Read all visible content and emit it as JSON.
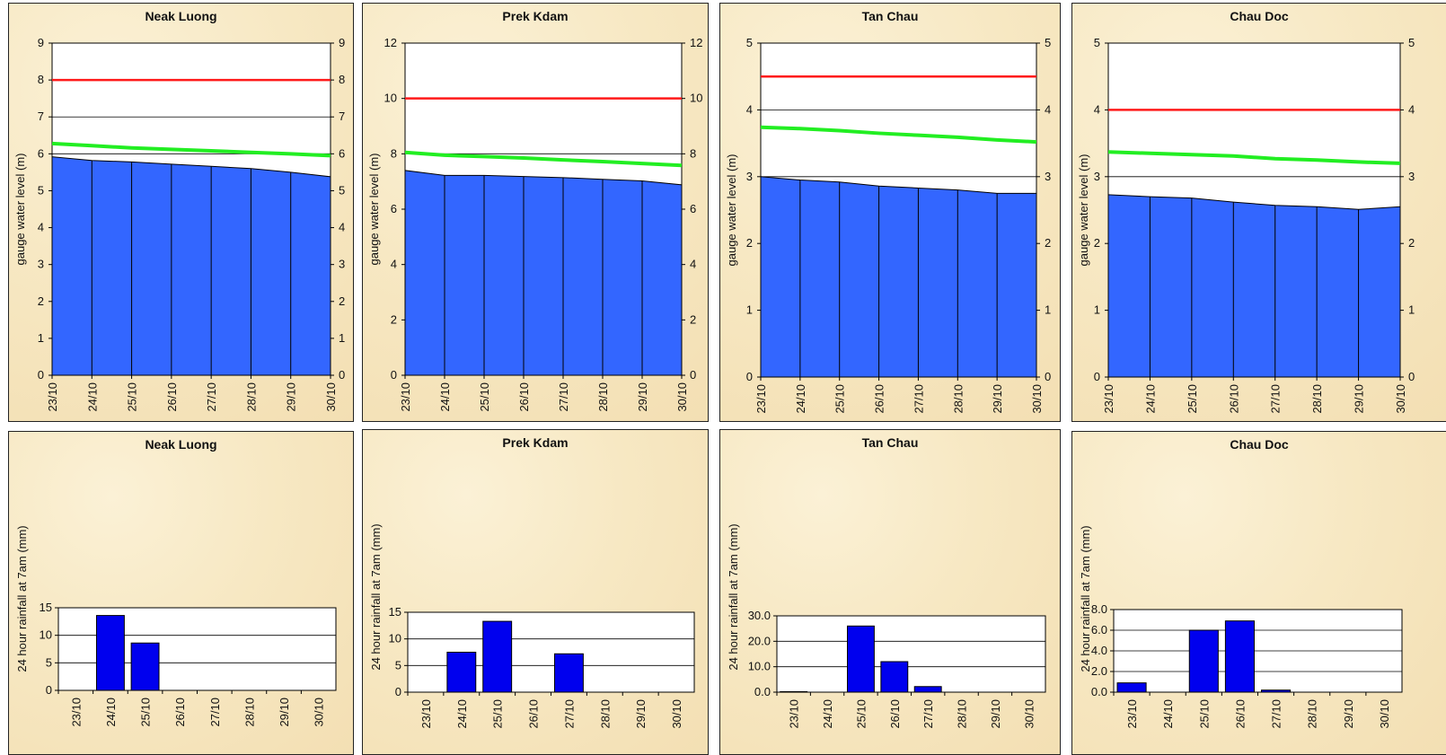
{
  "dates": [
    "23/10",
    "24/10",
    "25/10",
    "26/10",
    "27/10",
    "28/10",
    "29/10",
    "30/10"
  ],
  "level_ylabel": "gauge water level (m)",
  "rain_ylabel": "24 hour rainfall at 7am (mm)",
  "colors": {
    "area": "#3366ff",
    "red": "#ff1a1a",
    "green": "#22ee22",
    "bar": "#0000ee"
  },
  "chart_data": [
    {
      "type": "area",
      "title": "Neak Luong",
      "ylim": [
        0,
        9
      ],
      "yticks": [
        "0",
        "1",
        "2",
        "3",
        "4",
        "5",
        "6",
        "7",
        "8",
        "9"
      ],
      "right_axis": true,
      "series": [
        {
          "values": [
            5.92,
            5.82,
            5.78,
            5.72,
            5.66,
            5.6,
            5.5,
            5.38
          ]
        }
      ],
      "flood_level": 8.0,
      "green": [
        6.28,
        6.22,
        6.16,
        6.12,
        6.08,
        6.04,
        6.0,
        5.95
      ]
    },
    {
      "type": "area",
      "title": "Prek Kdam",
      "ylim": [
        0,
        12
      ],
      "yticks": [
        "0",
        "2",
        "4",
        "6",
        "8",
        "10",
        "12"
      ],
      "right_axis": true,
      "series": [
        {
          "values": [
            7.4,
            7.22,
            7.22,
            7.18,
            7.14,
            7.08,
            7.02,
            6.88
          ]
        }
      ],
      "flood_level": 10.0,
      "green": [
        8.05,
        7.95,
        7.9,
        7.85,
        7.78,
        7.72,
        7.65,
        7.58
      ]
    },
    {
      "type": "area",
      "title": "Tan Chau",
      "ylim": [
        0,
        5
      ],
      "yticks": [
        "0",
        "1",
        "2",
        "3",
        "4",
        "5"
      ],
      "right_axis": true,
      "series": [
        {
          "values": [
            3.0,
            2.95,
            2.92,
            2.86,
            2.83,
            2.8,
            2.75,
            2.75
          ]
        }
      ],
      "flood_level": 4.5,
      "green": [
        3.74,
        3.72,
        3.69,
        3.65,
        3.62,
        3.59,
        3.55,
        3.52
      ]
    },
    {
      "type": "area",
      "title": "Chau Doc",
      "ylim": [
        0,
        5
      ],
      "yticks": [
        "0",
        "1",
        "2",
        "3",
        "4",
        "5"
      ],
      "right_axis": true,
      "series": [
        {
          "values": [
            2.73,
            2.7,
            2.68,
            2.62,
            2.57,
            2.55,
            2.51,
            2.55
          ]
        }
      ],
      "flood_level": 4.0,
      "green": [
        3.37,
        3.35,
        3.33,
        3.31,
        3.27,
        3.25,
        3.22,
        3.2
      ]
    },
    {
      "type": "bar",
      "title": "Neak Luong",
      "ylim": [
        0,
        15
      ],
      "yticks": [
        "0",
        "5",
        "10",
        "15"
      ],
      "categories": [
        "23/10",
        "24/10",
        "25/10",
        "26/10",
        "27/10",
        "28/10",
        "29/10",
        "30/10"
      ],
      "values": [
        0,
        13.6,
        8.6,
        0,
        0,
        0,
        0,
        0
      ]
    },
    {
      "type": "bar",
      "title": "Prek Kdam",
      "ylim": [
        0,
        15
      ],
      "yticks": [
        "0",
        "5",
        "10",
        "15"
      ],
      "categories": [
        "23/10",
        "24/10",
        "25/10",
        "26/10",
        "27/10",
        "28/10",
        "29/10",
        "30/10"
      ],
      "values": [
        0,
        7.5,
        13.3,
        0,
        7.2,
        0,
        0,
        0
      ]
    },
    {
      "type": "bar",
      "title": "Tan Chau",
      "ylim": [
        0,
        30
      ],
      "yticks": [
        "0.0",
        "10.0",
        "20.0",
        "30.0"
      ],
      "categories": [
        "23/10",
        "24/10",
        "25/10",
        "26/10",
        "27/10",
        "28/10",
        "29/10",
        "30/10"
      ],
      "values": [
        0.2,
        0,
        26.0,
        12.0,
        2.2,
        0,
        0,
        0
      ]
    },
    {
      "type": "bar",
      "title": "Chau Doc",
      "ylim": [
        0,
        8
      ],
      "yticks": [
        "0.0",
        "2.0",
        "4.0",
        "6.0",
        "8.0"
      ],
      "categories": [
        "23/10",
        "24/10",
        "25/10",
        "26/10",
        "27/10",
        "28/10",
        "29/10",
        "30/10"
      ],
      "values": [
        0.9,
        0,
        6.0,
        6.9,
        0.2,
        0,
        0,
        0
      ]
    }
  ]
}
